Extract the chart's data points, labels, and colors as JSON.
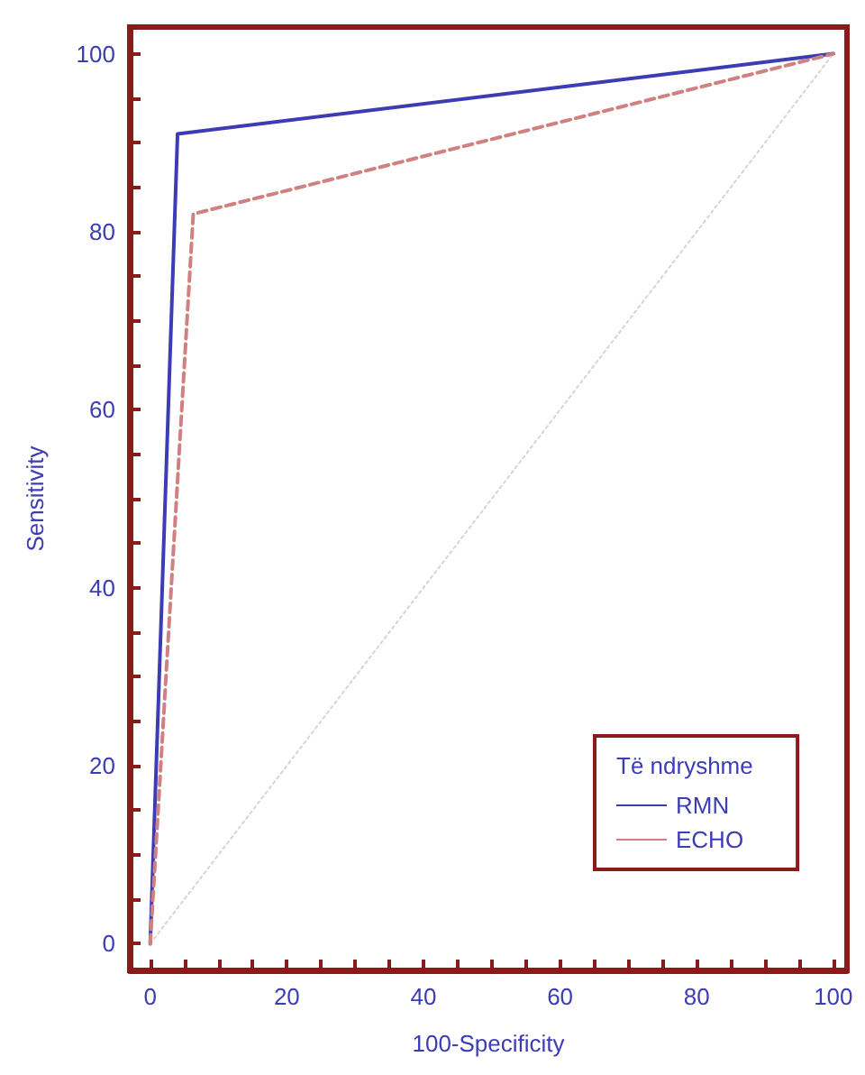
{
  "chart_data": {
    "type": "line",
    "xlabel": "100-Specificity",
    "ylabel": "Sensitivity",
    "legend_title": "Të ndryshme",
    "legend": "bottom right",
    "grid": false,
    "marker": "none",
    "xlim": [
      -3,
      102
    ],
    "ylim": [
      -3,
      103
    ],
    "xticks": [
      0,
      {
        "value": 5,
        "label": null
      },
      {
        "value": 10,
        "label": null
      },
      {
        "value": 15,
        "label": null
      },
      20,
      {
        "value": 25,
        "label": null
      },
      {
        "value": 30,
        "label": null
      },
      {
        "value": 35,
        "label": null
      },
      40,
      {
        "value": 45,
        "label": null
      },
      {
        "value": 50,
        "label": null
      },
      {
        "value": 55,
        "label": null
      },
      60,
      {
        "value": 65,
        "label": null
      },
      {
        "value": 70,
        "label": null
      },
      {
        "value": 75,
        "label": null
      },
      80,
      {
        "value": 85,
        "label": null
      },
      {
        "value": 90,
        "label": null
      },
      {
        "value": 95,
        "label": null
      },
      100
    ],
    "yticks": [
      0,
      {
        "value": 5,
        "label": null
      },
      {
        "value": 10,
        "label": null
      },
      {
        "value": 15,
        "label": null
      },
      20,
      {
        "value": 25,
        "label": null
      },
      {
        "value": 30,
        "label": null
      },
      {
        "value": 35,
        "label": null
      },
      40,
      {
        "value": 45,
        "label": null
      },
      {
        "value": 50,
        "label": null
      },
      {
        "value": 55,
        "label": null
      },
      60,
      {
        "value": 65,
        "label": null
      },
      {
        "value": 70,
        "label": null
      },
      {
        "value": 75,
        "label": null
      },
      80,
      {
        "value": 85,
        "label": null
      },
      {
        "value": 90,
        "label": null
      },
      {
        "value": 95,
        "label": null
      },
      100
    ],
    "series": [
      {
        "name": "RMN",
        "color": "#3c3cb4",
        "line_style": "solid",
        "x": [
          0,
          4,
          100
        ],
        "values": [
          0,
          91,
          100
        ]
      },
      {
        "name": "ECHO",
        "color": "#d08080",
        "line_style": "dashed",
        "x": [
          0,
          6.3,
          100
        ],
        "values": [
          0,
          82,
          100
        ]
      },
      {
        "color": "#e0d0d0",
        "line_style": "dotted",
        "x": [
          0,
          100
        ],
        "values": [
          0,
          100
        ]
      }
    ]
  }
}
